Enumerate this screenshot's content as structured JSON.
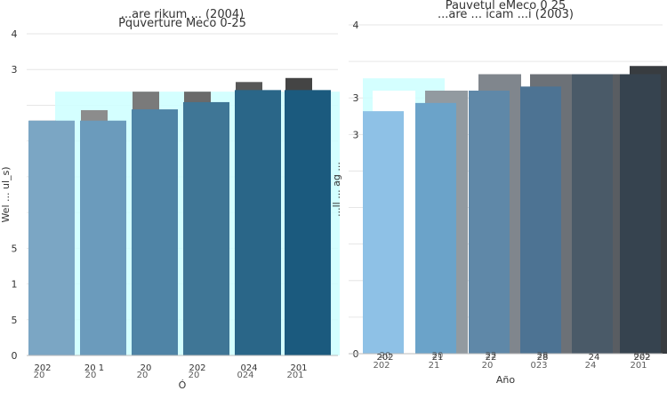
{
  "colors": {
    "background": "#ffffff",
    "gridline": "#e6e6e6",
    "axis": "#bbbbbb",
    "highlight": "#ccffff",
    "back_left": [
      "#a8a8a8",
      "#8c8c8c",
      "#7a7a7a",
      "#6a6a6a",
      "#575757",
      "#444444"
    ],
    "front_left": [
      "#7ba6c4",
      "#6b9bbc",
      "#4f84a6",
      "#3f7696",
      "#2a6688",
      "#1b5a7e"
    ],
    "back_right": [
      "#ffffff",
      "#929aa0",
      "#80868d",
      "#6c7177",
      "#595d62",
      "#383c40"
    ],
    "front_right": [
      "#8ec1e6",
      "#6ba3c9",
      "#5f88a8",
      "#4d7393",
      "#4a5a68",
      "#36434f"
    ]
  },
  "chart_data": [
    {
      "type": "bar",
      "title": "...are rikum ... (2004)",
      "subtitle": "Pquverture Meco 0-25",
      "xlabel": "Ó",
      "ylabel": "Wel ... ul_s)",
      "categories": [
        "202",
        "20 1",
        "20",
        "202",
        "024",
        "201"
      ],
      "tick_labels_row2": [
        "20",
        "20",
        "20",
        "20",
        "024",
        "201"
      ],
      "y_ticks": [
        "0",
        "5",
        "1",
        "5",
        "",
        "",
        "",
        "",
        "3",
        "4"
      ],
      "series": [
        {
          "values": [
            2.92,
            3.05,
            3.28,
            3.28,
            3.4,
            3.45
          ]
        },
        {
          "values": [
            2.92,
            2.92,
            3.06,
            3.15,
            3.3,
            3.3
          ]
        }
      ],
      "ylim": [
        0,
        4
      ],
      "highlight_value": 3.28,
      "grid": true
    },
    {
      "type": "bar",
      "title": "Pauvetul eMeco 0 25",
      "subtitle": "...are ... icam ...i (2003)",
      "xlabel": "Año",
      "ylabel": "...ll ... ag ...",
      "categories": [
        "202",
        "21",
        "22",
        "28",
        "24",
        "202"
      ],
      "tick_labels_row0": [
        "20",
        "20",
        "22",
        "28",
        "",
        "025"
      ],
      "tick_labels_row2": [
        "202",
        "21",
        "20",
        "023",
        "24",
        "201"
      ],
      "y_ticks": [
        "0",
        "",
        "",
        "",
        "",
        "",
        "3",
        "3",
        "",
        "4"
      ],
      "series": [
        {
          "values": [
            3.2,
            3.2,
            3.4,
            3.4,
            3.4,
            3.5
          ]
        },
        {
          "values": [
            2.95,
            3.05,
            3.2,
            3.25,
            3.4,
            3.4
          ]
        }
      ],
      "ylim": [
        0,
        4
      ],
      "highlight_value": 3.35,
      "grid": true
    }
  ]
}
